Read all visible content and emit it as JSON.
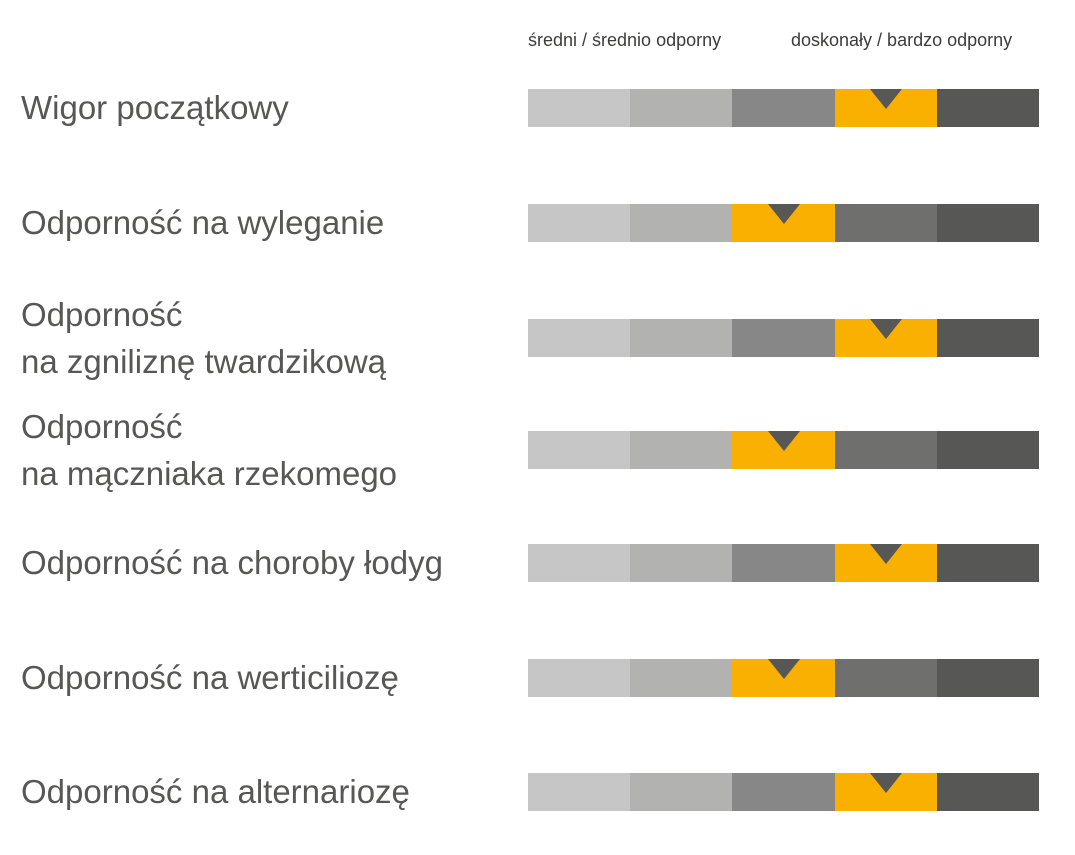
{
  "chart_data": {
    "type": "rating-scale",
    "scale_labels": {
      "low": "średni / średnio odporny",
      "high": "doskonały / bardzo odporny"
    },
    "levels": 5,
    "colors": {
      "segments": [
        "#c6c6c6",
        "#b2b2b1",
        "#878787",
        "#6f6f6e",
        "#575756"
      ],
      "highlight": "#f9b000",
      "marker": "#575756"
    },
    "rows": [
      {
        "label": [
          "Wigor początkowy"
        ],
        "value": 4
      },
      {
        "label": [
          "Odporność na wyleganie"
        ],
        "value": 3
      },
      {
        "label": [
          "Odporność",
          "na zgniliznę twardzikową"
        ],
        "value": 4
      },
      {
        "label": [
          "Odporność",
          "na mączniaka rzekomego"
        ],
        "value": 3
      },
      {
        "label": [
          "Odporność na choroby łodyg"
        ],
        "value": 4
      },
      {
        "label": [
          "Odporność na werticiliozę"
        ],
        "value": 3
      },
      {
        "label": [
          "Odporność na alternariozę"
        ],
        "value": 4
      }
    ]
  }
}
